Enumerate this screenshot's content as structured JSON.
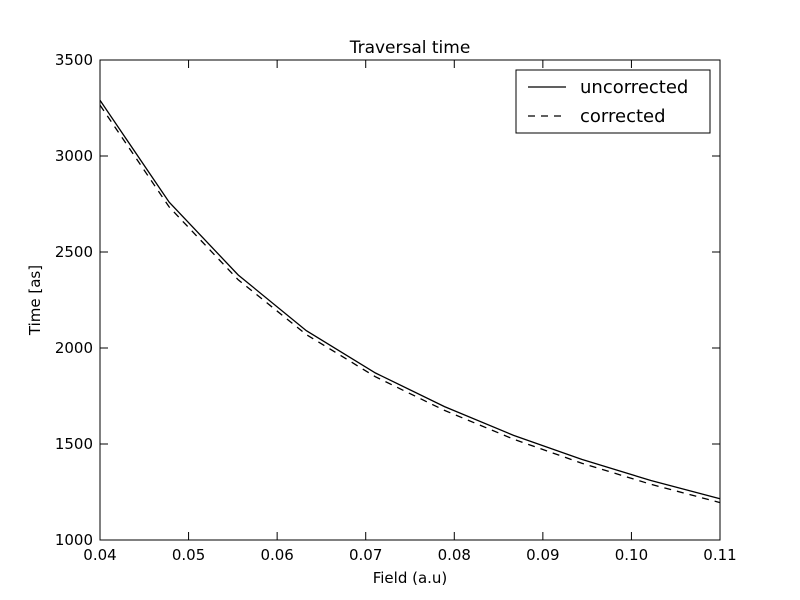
{
  "chart_data": {
    "type": "line",
    "title": "Traversal time",
    "xlabel": "Field (a.u)",
    "ylabel": "Time [as]",
    "xlim": [
      0.04,
      0.11
    ],
    "ylim": [
      1000,
      3500
    ],
    "x_ticks": [
      "0.04",
      "0.05",
      "0.06",
      "0.07",
      "0.08",
      "0.09",
      "0.10",
      "0.11"
    ],
    "y_ticks": [
      "1000",
      "1500",
      "2000",
      "2500",
      "3000",
      "3500"
    ],
    "grid": false,
    "legend_position": "top-right",
    "x": [
      0.04,
      0.0478,
      0.0556,
      0.0633,
      0.0711,
      0.0789,
      0.0867,
      0.0944,
      0.1022,
      0.11
    ],
    "series": [
      {
        "name": "uncorrected",
        "style": "solid",
        "color": "#000000",
        "values": [
          3290,
          2760,
          2380,
          2090,
          1870,
          1695,
          1545,
          1420,
          1310,
          1215
        ]
      },
      {
        "name": "corrected",
        "style": "dashed",
        "color": "#000000",
        "values": [
          3265,
          2735,
          2355,
          2070,
          1850,
          1675,
          1525,
          1400,
          1290,
          1195
        ]
      }
    ]
  }
}
